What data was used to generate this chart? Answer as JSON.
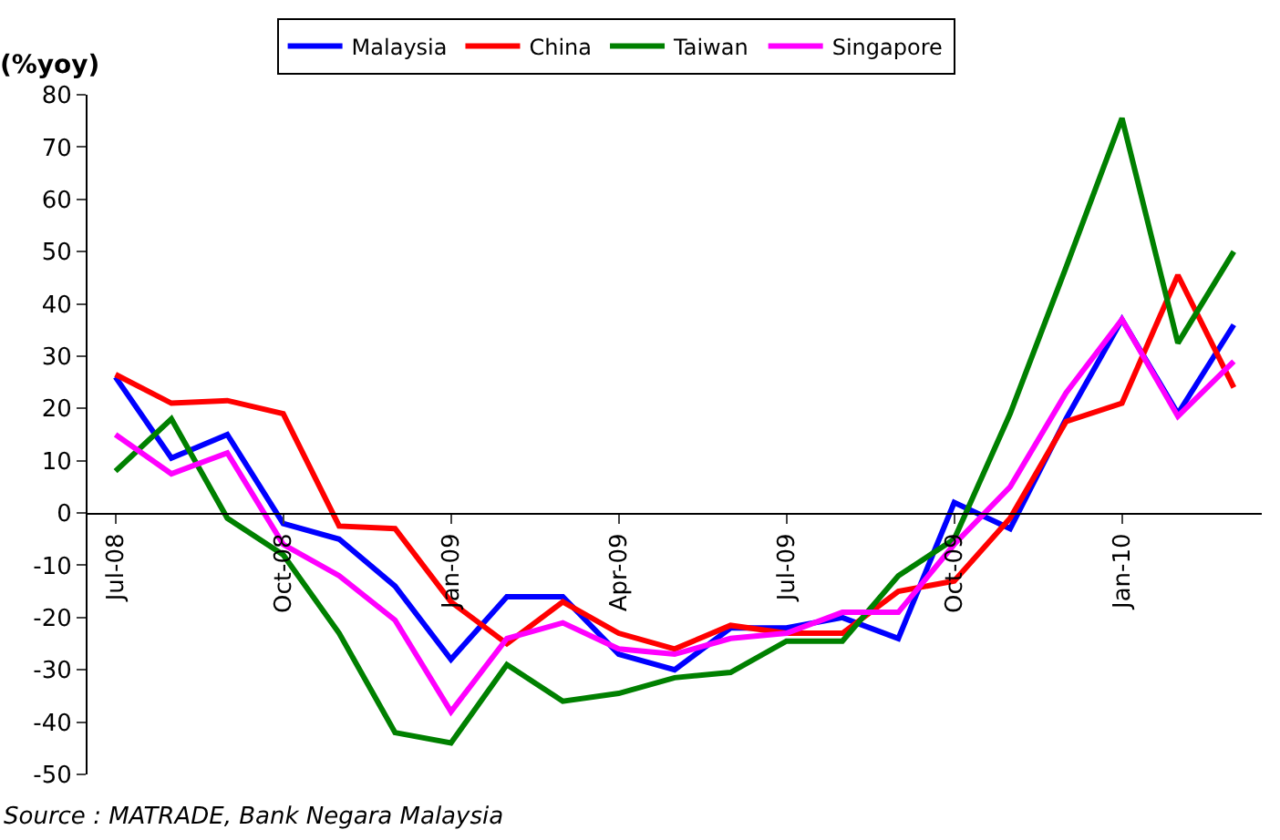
{
  "chart_data": {
    "type": "line",
    "ylabel": "(%yoy)",
    "categories": [
      "Jul-08",
      null,
      null,
      "Oct-08",
      null,
      null,
      "Jan-09",
      null,
      null,
      "Apr-09",
      null,
      null,
      "Jul-09",
      null,
      null,
      "Oct-09",
      null,
      null,
      "Jan-10",
      null,
      null
    ],
    "series": [
      {
        "name": "Malaysia",
        "color": "#0000ff",
        "values": [
          26,
          10.5,
          15,
          -2,
          -5,
          -14,
          -28,
          -16,
          -16,
          -27,
          -30,
          -22,
          -22,
          -20,
          -24,
          2,
          -3,
          18,
          37,
          19,
          36
        ]
      },
      {
        "name": "China",
        "color": "#ff0000",
        "values": [
          26.5,
          21,
          21.5,
          19,
          -2.5,
          -3,
          -17,
          -25,
          -17,
          -23,
          -26,
          -21.5,
          -23,
          -23,
          -15,
          -13,
          -1,
          17.5,
          21,
          45.5,
          24
        ]
      },
      {
        "name": "Taiwan",
        "color": "#008000",
        "values": [
          8,
          18,
          -1,
          -8,
          -23,
          -42,
          -44,
          -29,
          -36,
          -34.5,
          -31.5,
          -30.5,
          -24.5,
          -24.5,
          -12,
          -5,
          19,
          47,
          75.5,
          32.5,
          50
        ]
      },
      {
        "name": "Singapore",
        "color": "#ff00ff",
        "values": [
          15,
          7.5,
          11.5,
          -6,
          -12,
          -20.5,
          -38,
          -24,
          -21,
          -26,
          -27,
          -24,
          -23,
          -19,
          -19,
          -6,
          5,
          23,
          37,
          18.5,
          29
        ]
      }
    ],
    "ylim": [
      -50,
      80
    ],
    "yticks": [
      -50,
      -40,
      -30,
      -20,
      -10,
      0,
      10,
      20,
      30,
      40,
      50,
      60,
      70,
      80
    ],
    "legend": "top",
    "marker": "none",
    "line_style": "solid",
    "annotations": [
      "Source : MATRADE, Bank Negara Malaysia"
    ]
  }
}
